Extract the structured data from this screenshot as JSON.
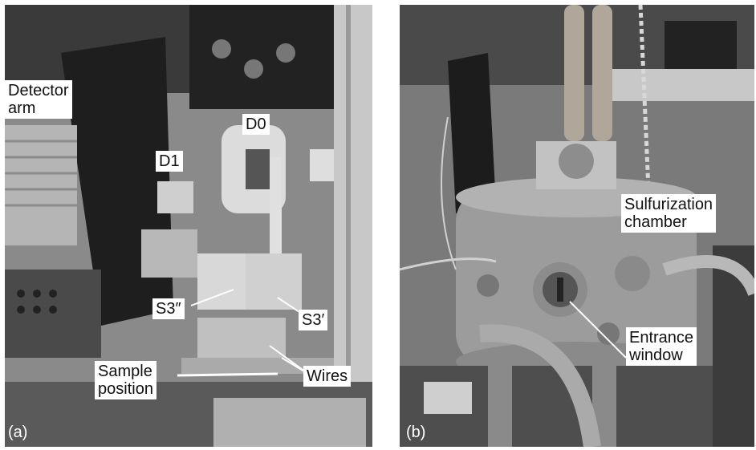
{
  "figure": {
    "panel_a": {
      "letter": "(a)",
      "labels": {
        "detector_arm_1": "Detector",
        "detector_arm_2": "arm",
        "d0": "D0",
        "d1": "D1",
        "s3pp": "S3″",
        "s3p": "S3′",
        "wires": "Wires",
        "sample_position_1": "Sample",
        "sample_position_2": "position"
      }
    },
    "panel_b": {
      "letter": "(b)",
      "labels": {
        "sulfurization_1": "Sulfurization",
        "sulfurization_2": "chamber",
        "entrance_1": "Entrance",
        "entrance_2": "window"
      }
    }
  }
}
